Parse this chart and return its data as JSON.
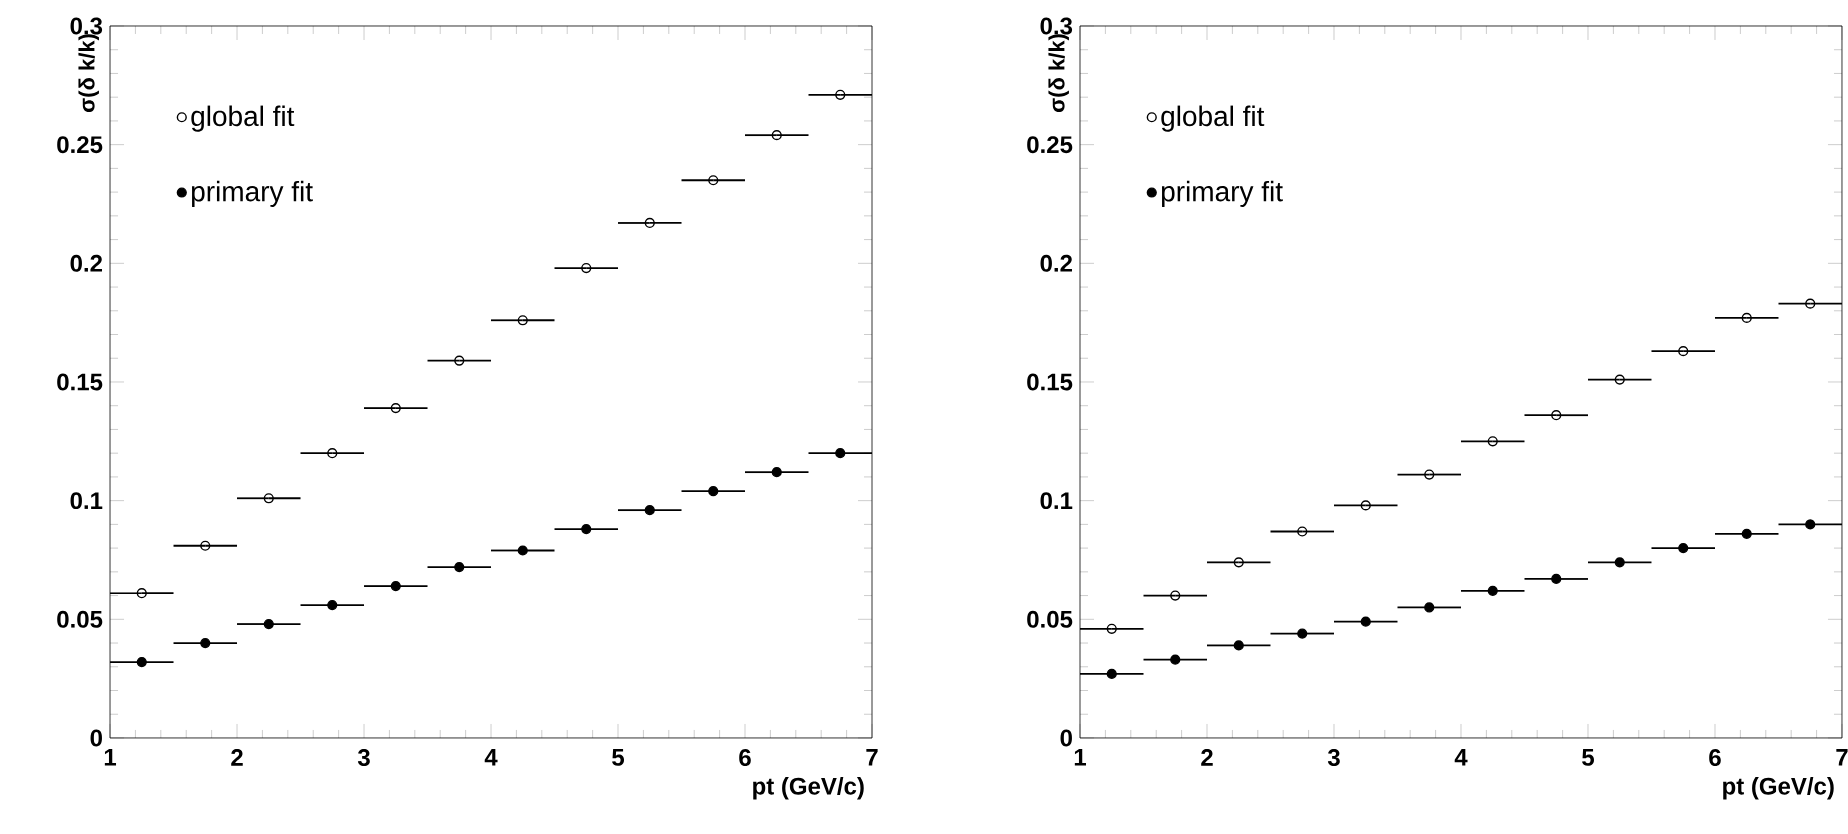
{
  "chart_data": [
    {
      "type": "scatter",
      "xlabel": "pt (GeV/c)",
      "ylabel": "σ(δ k/k)",
      "xlim": [
        1,
        7
      ],
      "ylim": [
        0,
        0.3
      ],
      "xticks": [
        1,
        2,
        3,
        4,
        5,
        6,
        7
      ],
      "yticks": [
        0,
        0.05,
        0.1,
        0.15,
        0.2,
        0.25,
        0.3
      ],
      "legend": "top left",
      "marker": "circle",
      "x": [
        1.25,
        1.75,
        2.25,
        2.75,
        3.25,
        3.75,
        4.25,
        4.75,
        5.25,
        5.75,
        6.25,
        6.75
      ],
      "series": [
        {
          "name": "global fit",
          "color": "#000000",
          "marker": "circle-open",
          "values": [
            0.061,
            0.081,
            0.101,
            0.12,
            0.139,
            0.159,
            0.176,
            0.198,
            0.217,
            0.235,
            0.254,
            0.271
          ],
          "xerrors": [
            0.25,
            0.25,
            0.25,
            0.25,
            0.25,
            0.25,
            0.25,
            0.25,
            0.25,
            0.25,
            0.25,
            0.25
          ]
        },
        {
          "name": "primary fit",
          "color": "#000000",
          "values": [
            0.032,
            0.04,
            0.048,
            0.056,
            0.064,
            0.072,
            0.079,
            0.088,
            0.096,
            0.104,
            0.112,
            0.12
          ],
          "xerrors": [
            0.25,
            0.25,
            0.25,
            0.25,
            0.25,
            0.25,
            0.25,
            0.25,
            0.25,
            0.25,
            0.25,
            0.25
          ]
        }
      ]
    },
    {
      "type": "scatter",
      "xlabel": "pt (GeV/c)",
      "ylabel": "σ(δ k/k)",
      "xlim": [
        1,
        7
      ],
      "ylim": [
        0,
        0.3
      ],
      "xticks": [
        1,
        2,
        3,
        4,
        5,
        6,
        7
      ],
      "yticks": [
        0,
        0.05,
        0.1,
        0.15,
        0.2,
        0.25,
        0.3
      ],
      "legend": "top left",
      "marker": "circle",
      "x": [
        1.25,
        1.75,
        2.25,
        2.75,
        3.25,
        3.75,
        4.25,
        4.75,
        5.25,
        5.75,
        6.25,
        6.75
      ],
      "series": [
        {
          "name": "global fit",
          "color": "#000000",
          "marker": "circle-open",
          "values": [
            0.046,
            0.06,
            0.074,
            0.087,
            0.098,
            0.111,
            0.125,
            0.136,
            0.151,
            0.163,
            0.177,
            0.183
          ],
          "xerrors": [
            0.25,
            0.25,
            0.25,
            0.25,
            0.25,
            0.25,
            0.25,
            0.25,
            0.25,
            0.25,
            0.25,
            0.25
          ]
        },
        {
          "name": "primary fit",
          "color": "#000000",
          "values": [
            0.027,
            0.033,
            0.039,
            0.044,
            0.049,
            0.055,
            0.062,
            0.067,
            0.074,
            0.08,
            0.086,
            0.09
          ],
          "xerrors": [
            0.25,
            0.25,
            0.25,
            0.25,
            0.25,
            0.25,
            0.25,
            0.25,
            0.25,
            0.25,
            0.25,
            0.25
          ]
        }
      ]
    }
  ]
}
